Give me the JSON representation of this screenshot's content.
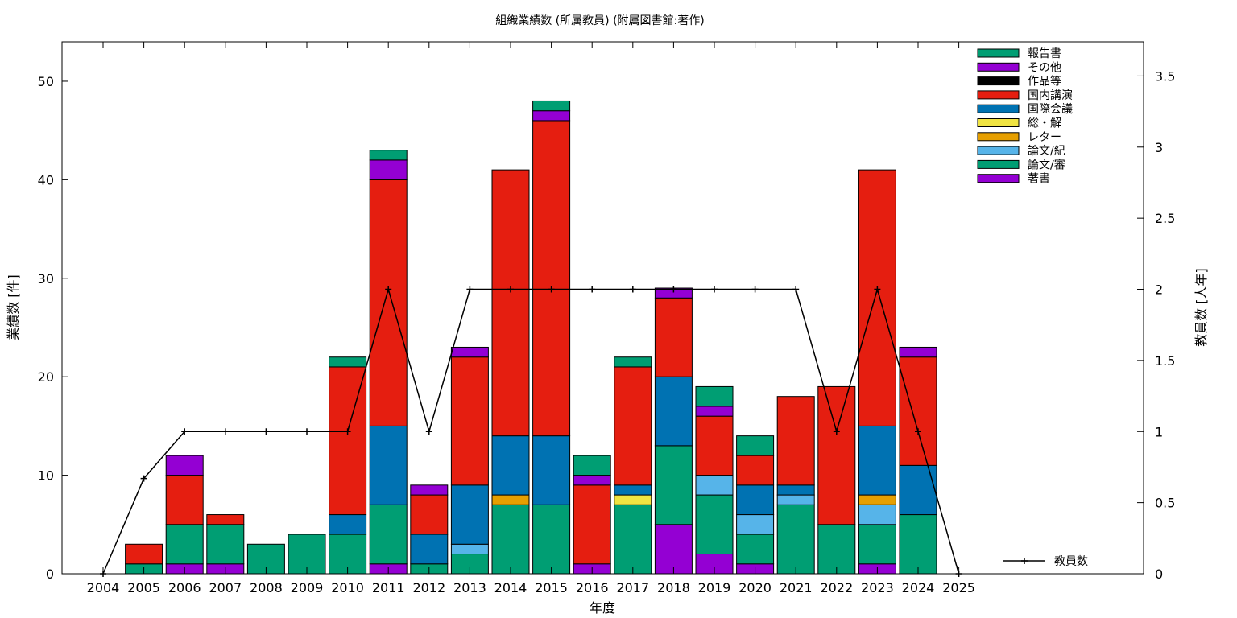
{
  "chart_data": {
    "type": "bar",
    "stacked": true,
    "title": "組織業績数 (所属教員) (附属図書館:著作)",
    "xlabel": "年度",
    "ylabel": "業績数 [件]",
    "y2label": "教員数 [人年]",
    "categories": [
      "2004",
      "2005",
      "2006",
      "2007",
      "2008",
      "2009",
      "2010",
      "2011",
      "2012",
      "2013",
      "2014",
      "2015",
      "2016",
      "2017",
      "2018",
      "2019",
      "2020",
      "2021",
      "2022",
      "2023",
      "2024",
      "2025"
    ],
    "ylim": [
      0,
      54
    ],
    "y2lim": [
      0,
      3.74
    ],
    "yticks": [
      0,
      10,
      20,
      30,
      40,
      50
    ],
    "y2ticks": [
      "0",
      "0.5",
      "1",
      "1.5",
      "2",
      "2.5",
      "3",
      "3.5"
    ],
    "legend_position": "top-right",
    "series": [
      {
        "name": "著書",
        "color": "#9400d3",
        "values": [
          0,
          0,
          1,
          1,
          0,
          0,
          0,
          1,
          0,
          0,
          0,
          0,
          1,
          0,
          5,
          2,
          1,
          0,
          0,
          1,
          0,
          0
        ]
      },
      {
        "name": "論文/審",
        "color": "#009e73",
        "values": [
          0,
          1,
          4,
          4,
          3,
          4,
          4,
          6,
          1,
          2,
          7,
          7,
          0,
          7,
          8,
          6,
          3,
          7,
          5,
          4,
          6,
          0
        ]
      },
      {
        "name": "論文/紀",
        "color": "#56b4e9",
        "values": [
          0,
          0,
          0,
          0,
          0,
          0,
          0,
          0,
          0,
          1,
          0,
          0,
          0,
          0,
          0,
          2,
          2,
          1,
          0,
          2,
          0,
          0
        ]
      },
      {
        "name": "レター",
        "color": "#e69f00",
        "values": [
          0,
          0,
          0,
          0,
          0,
          0,
          0,
          0,
          0,
          0,
          1,
          0,
          0,
          0,
          0,
          0,
          0,
          0,
          0,
          1,
          0,
          0
        ]
      },
      {
        "name": "総・解",
        "color": "#f0e442",
        "values": [
          0,
          0,
          0,
          0,
          0,
          0,
          0,
          0,
          0,
          0,
          0,
          0,
          0,
          1,
          0,
          0,
          0,
          0,
          0,
          0,
          0,
          0
        ]
      },
      {
        "name": "国際会議",
        "color": "#0072b2",
        "values": [
          0,
          0,
          0,
          0,
          0,
          0,
          2,
          8,
          3,
          6,
          6,
          7,
          0,
          1,
          7,
          0,
          3,
          1,
          0,
          7,
          5,
          0
        ]
      },
      {
        "name": "国内講演",
        "color": "#e51e10",
        "values": [
          0,
          2,
          5,
          1,
          0,
          0,
          15,
          25,
          4,
          13,
          27,
          32,
          8,
          12,
          8,
          6,
          3,
          9,
          14,
          26,
          11,
          0
        ]
      },
      {
        "name": "作品等",
        "color": "#000000",
        "values": [
          0,
          0,
          0,
          0,
          0,
          0,
          0,
          0,
          0,
          0,
          0,
          0,
          0,
          0,
          0,
          0,
          0,
          0,
          0,
          0,
          0,
          0
        ]
      },
      {
        "name": "その他",
        "color": "#9400d3",
        "values": [
          0,
          0,
          2,
          0,
          0,
          0,
          0,
          2,
          1,
          1,
          0,
          1,
          1,
          0,
          1,
          1,
          0,
          0,
          0,
          0,
          1,
          0
        ]
      },
      {
        "name": "報告書",
        "color": "#009e73",
        "values": [
          0,
          0,
          0,
          0,
          0,
          0,
          1,
          1,
          0,
          0,
          0,
          1,
          2,
          1,
          0,
          2,
          2,
          0,
          0,
          0,
          0,
          0
        ]
      }
    ],
    "line_series": {
      "name": "教員数",
      "axis": "y2",
      "color": "#000000",
      "values": [
        0,
        0.67,
        1,
        1,
        1,
        1,
        1,
        2,
        1,
        2,
        2,
        2,
        2,
        2,
        2,
        2,
        2,
        2,
        1,
        2,
        1,
        0
      ]
    }
  }
}
